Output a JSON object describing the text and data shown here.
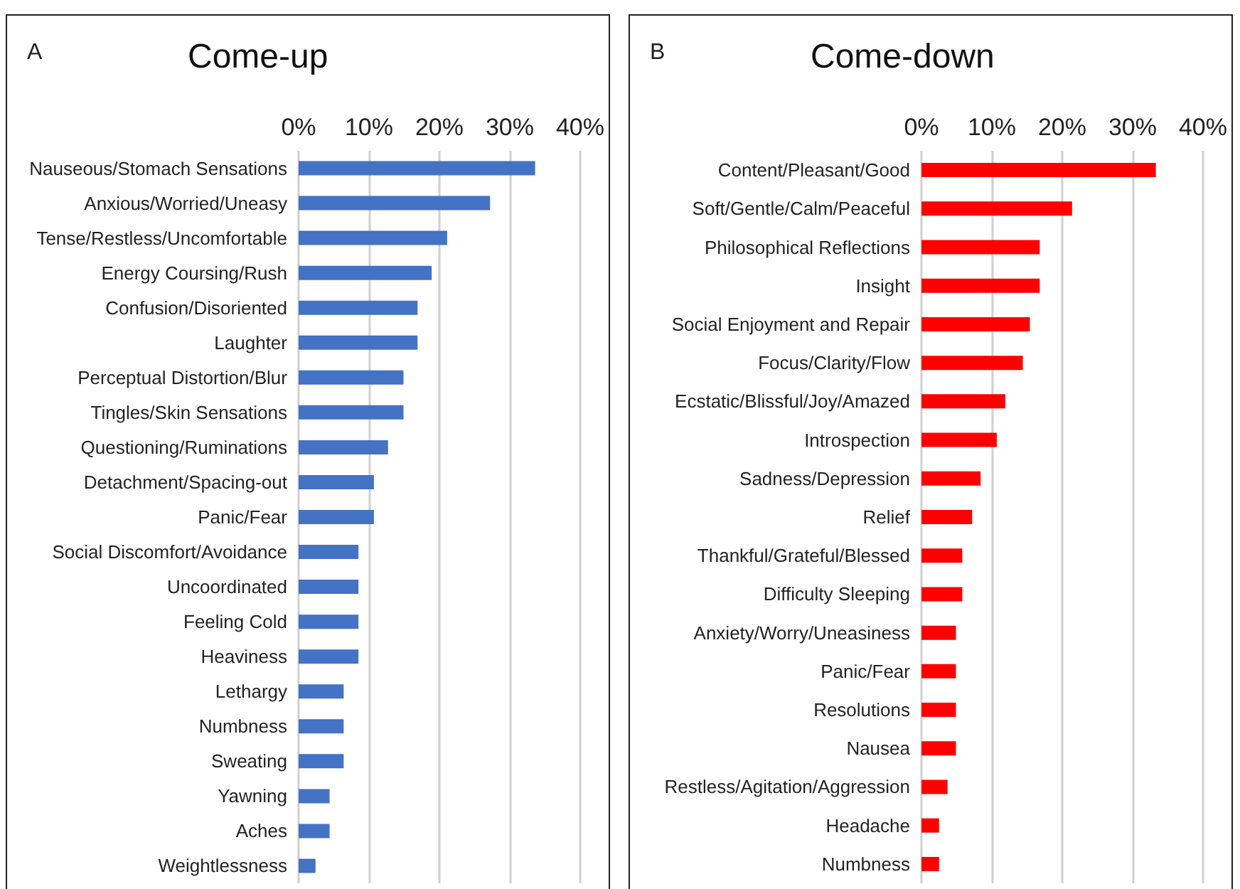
{
  "chart_data": [
    {
      "type": "bar",
      "orientation": "horizontal",
      "title": "Come-up",
      "annotations": [
        "A"
      ],
      "color": "#4472c4",
      "grid": "x",
      "categories": [
        "Nauseous/Stomach Sensations",
        "Anxious/Worried/Uneasy",
        "Tense/Restless/Uncomfortable",
        "Energy Coursing/Rush",
        "Confusion/Disoriented",
        "Laughter",
        "Perceptual Distortion/Blur",
        "Tingles/Skin Sensations",
        "Questioning/Ruminations",
        "Detachment/Spacing-out",
        "Panic/Fear",
        "Social Discomfort/Avoidance",
        "Uncoordinated",
        "Feeling Cold",
        "Heaviness",
        "Lethargy",
        "Numbness",
        "Sweating",
        "Yawning",
        "Aches",
        "Weightlessness"
      ],
      "values": [
        33.6,
        27.2,
        21.1,
        18.9,
        16.9,
        16.9,
        14.9,
        14.9,
        12.7,
        10.7,
        10.7,
        8.5,
        8.5,
        8.5,
        8.5,
        6.4,
        6.4,
        6.4,
        4.4,
        4.4,
        2.4
      ],
      "xlim": [
        0,
        40
      ],
      "xticks": [
        {
          "value": 0,
          "label": "0%"
        },
        {
          "value": 10,
          "label": "10%"
        },
        {
          "value": 20,
          "label": "20%"
        },
        {
          "value": 30,
          "label": "30%"
        },
        {
          "value": 40,
          "label": "40%"
        }
      ]
    },
    {
      "type": "bar",
      "orientation": "horizontal",
      "title": "Come-down",
      "annotations": [
        "B"
      ],
      "color": "#ff0000",
      "grid": "x",
      "categories": [
        "Content/Pleasant/Good",
        "Soft/Gentle/Calm/Peaceful",
        "Philosophical Reflections",
        "Insight",
        "Social Enjoyment and Repair",
        "Focus/Clarity/Flow",
        "Ecstatic/Blissful/Joy/Amazed",
        "Introspection",
        "Sadness/Depression",
        "Relief",
        "Thankful/Grateful/Blessed",
        "Difficulty Sleeping",
        "Anxiety/Worry/Uneasiness",
        "Panic/Fear",
        "Resolutions",
        "Nausea",
        "Restless/Agitation/Aggression",
        "Headache",
        "Numbness"
      ],
      "values": [
        33.3,
        21.4,
        16.8,
        16.8,
        15.4,
        14.4,
        11.9,
        10.7,
        8.4,
        7.2,
        5.8,
        5.8,
        4.9,
        4.9,
        4.9,
        4.9,
        3.7,
        2.5,
        2.5
      ],
      "xlim": [
        0,
        40
      ],
      "xticks": [
        {
          "value": 0,
          "label": "0%"
        },
        {
          "value": 10,
          "label": "10%"
        },
        {
          "value": 20,
          "label": "20%"
        },
        {
          "value": 30,
          "label": "30%"
        },
        {
          "value": 40,
          "label": "40%"
        }
      ]
    }
  ]
}
